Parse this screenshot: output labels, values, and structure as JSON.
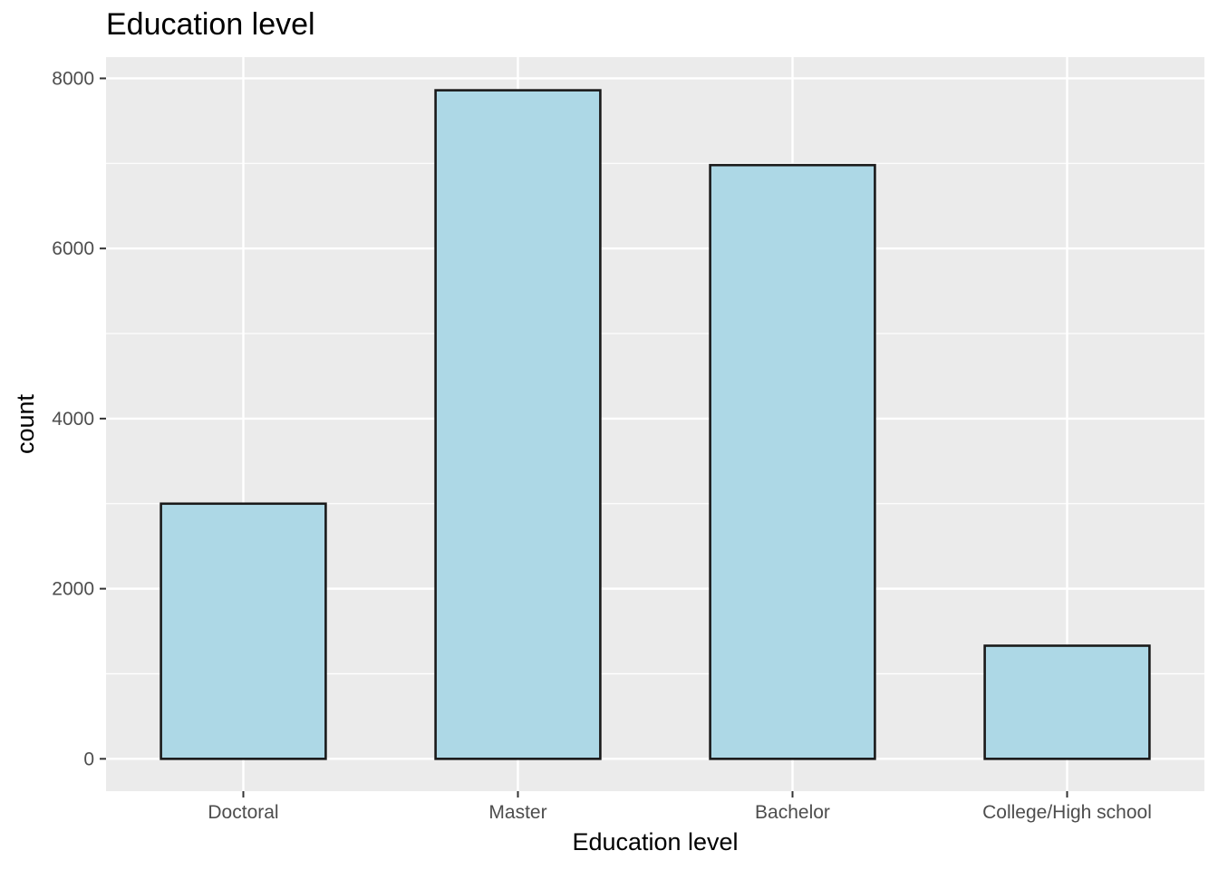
{
  "chart_data": {
    "type": "bar",
    "title": "Education level",
    "xlabel": "Education level",
    "ylabel": "count",
    "categories": [
      "Doctoral",
      "Master",
      "Bachelor",
      "College/High school"
    ],
    "values": [
      3000,
      7860,
      6980,
      1330
    ],
    "ylim": [
      -380,
      8250
    ],
    "yticks": [
      0,
      2000,
      4000,
      6000,
      8000
    ],
    "grid": true,
    "legend": "none",
    "colors": {
      "bar_fill": "#add8e6",
      "bar_stroke": "#1a1a1a",
      "panel_bg": "#ebebeb",
      "grid": "#ffffff"
    }
  }
}
